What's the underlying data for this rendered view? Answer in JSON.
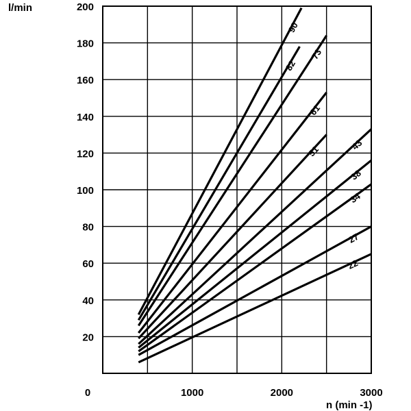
{
  "chart_data": {
    "type": "line",
    "ylabel": "l/min",
    "xlabel": "n (min -1)",
    "xlim": [
      0,
      3000
    ],
    "ylim": [
      0,
      200
    ],
    "x_ticks": [
      "0",
      "1000",
      "2000",
      "3000"
    ],
    "y_ticks": [
      "20",
      "40",
      "60",
      "80",
      "100",
      "120",
      "140",
      "160",
      "180",
      "200"
    ],
    "grid": true,
    "series": [
      {
        "name": "90",
        "x": [
          400,
          2220
        ],
        "y": [
          32,
          199
        ]
      },
      {
        "name": "82",
        "x": [
          400,
          2200
        ],
        "y": [
          29,
          178
        ]
      },
      {
        "name": "73",
        "x": [
          400,
          2500
        ],
        "y": [
          26,
          184
        ]
      },
      {
        "name": "61",
        "x": [
          400,
          2500
        ],
        "y": [
          22,
          153
        ]
      },
      {
        "name": "51",
        "x": [
          400,
          2500
        ],
        "y": [
          19,
          130
        ]
      },
      {
        "name": "43",
        "x": [
          400,
          3000
        ],
        "y": [
          16,
          133
        ]
      },
      {
        "name": "38",
        "x": [
          400,
          3000
        ],
        "y": [
          14,
          116
        ]
      },
      {
        "name": "34",
        "x": [
          400,
          3000
        ],
        "y": [
          12,
          103
        ]
      },
      {
        "name": "27",
        "x": [
          400,
          3000
        ],
        "y": [
          10,
          80
        ]
      },
      {
        "name": "22",
        "x": [
          400,
          3000
        ],
        "y": [
          6,
          65
        ]
      }
    ]
  }
}
